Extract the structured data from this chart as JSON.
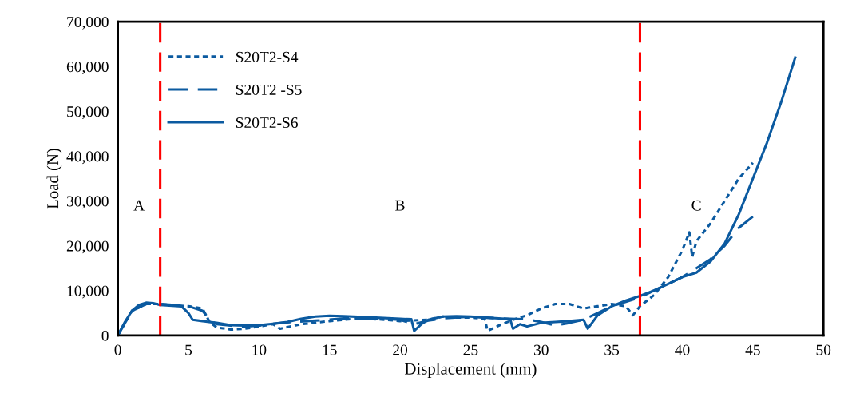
{
  "chart_data": {
    "type": "line",
    "xlabel": "Displacement (mm)",
    "ylabel": "Load (N)",
    "xlim": [
      0,
      50
    ],
    "xticks": [
      0,
      5,
      10,
      15,
      20,
      25,
      30,
      35,
      40,
      45,
      50
    ],
    "ylim": [
      0,
      70000
    ],
    "yticks": [
      {
        "value": 0,
        "label": "0"
      },
      {
        "value": 10000,
        "label": "10,000"
      },
      {
        "value": 20000,
        "label": "20,000"
      },
      {
        "value": 30000,
        "label": "30,000"
      },
      {
        "value": 40000,
        "label": "40,000"
      },
      {
        "value": 50000,
        "label": "50,000"
      },
      {
        "value": 60000,
        "label": "60,000"
      },
      {
        "value": 70000,
        "label": "70,000"
      }
    ],
    "grid": false,
    "legend": "top left",
    "marker": "none",
    "series": [
      {
        "name": "S20T2-S4",
        "color": "#0b5aa0",
        "line_style": "dotted",
        "x": [
          0,
          1,
          2,
          3,
          5,
          6,
          6.5,
          7,
          8,
          9,
          10,
          11,
          11.5,
          13,
          15,
          17,
          19,
          20,
          22,
          23,
          24,
          25,
          26,
          26.2,
          27,
          28,
          29,
          30,
          31,
          32,
          33,
          34,
          35,
          36,
          36.5,
          37,
          38,
          39,
          40,
          40.5,
          40.7,
          41,
          42,
          43,
          44,
          45
        ],
        "values": [
          0,
          5500,
          7000,
          7000,
          6500,
          6000,
          3000,
          1800,
          1300,
          1500,
          2000,
          2500,
          1500,
          2500,
          3200,
          3800,
          3500,
          3200,
          3500,
          4200,
          4000,
          4000,
          3700,
          1000,
          2200,
          3500,
          4500,
          6000,
          7000,
          7000,
          6000,
          6500,
          7000,
          6500,
          4500,
          6500,
          9000,
          13000,
          19000,
          23000,
          17500,
          21000,
          25000,
          30000,
          35000,
          38500
        ]
      },
      {
        "name": "S20T2 -S5",
        "color": "#0b5aa0",
        "line_style": "dashed",
        "x": [
          0,
          1,
          2,
          3,
          4,
          5,
          6,
          6.5,
          7,
          8,
          9,
          10,
          11,
          12,
          14,
          16,
          18,
          20,
          21,
          22,
          23,
          25,
          27,
          29,
          30,
          31,
          32,
          33,
          34,
          35,
          36,
          37,
          38,
          39,
          40,
          41,
          42,
          43,
          44,
          45
        ],
        "values": [
          0,
          5500,
          7000,
          7000,
          6800,
          6500,
          5500,
          3500,
          2500,
          2200,
          2000,
          2200,
          2600,
          2900,
          3300,
          3800,
          3800,
          3500,
          2500,
          3300,
          3800,
          4200,
          3800,
          3600,
          3000,
          2200,
          2800,
          3500,
          5000,
          6500,
          7500,
          8500,
          10000,
          11500,
          13000,
          15000,
          17000,
          20000,
          24000,
          26500
        ]
      },
      {
        "name": "S20T2-S6",
        "color": "#0b5aa0",
        "line_style": "solid",
        "x": [
          0,
          0.5,
          1,
          1.5,
          2,
          2.5,
          3,
          4.5,
          5,
          5.3,
          6,
          7,
          8,
          9,
          10,
          11,
          12,
          13,
          14,
          15,
          16,
          18,
          20,
          20.8,
          21,
          21.5,
          22,
          23,
          24,
          25,
          26,
          27,
          27.8,
          28,
          28.5,
          29,
          30,
          31,
          32,
          33,
          33.3,
          34,
          35,
          36,
          37,
          38,
          39,
          40,
          41,
          42,
          43,
          44,
          45,
          46,
          47,
          48
        ],
        "values": [
          0,
          3000,
          5500,
          6800,
          7300,
          7200,
          6800,
          6500,
          5000,
          3500,
          3200,
          2800,
          2300,
          2200,
          2300,
          2600,
          3000,
          3700,
          4200,
          4400,
          4300,
          4000,
          3700,
          3600,
          1000,
          2500,
          3500,
          4200,
          4300,
          4200,
          4000,
          3800,
          3600,
          1500,
          2500,
          2000,
          2800,
          3000,
          3200,
          3500,
          1500,
          4500,
          6500,
          7800,
          8800,
          10000,
          11500,
          13000,
          14000,
          16500,
          20500,
          27000,
          35000,
          43000,
          52000,
          62000
        ]
      }
    ],
    "ref_lines": [
      {
        "axis": "x",
        "value": 3,
        "color": "#ff0000",
        "line_style": "dashed"
      },
      {
        "axis": "x",
        "value": 37,
        "color": "#ff0000",
        "line_style": "dashed"
      }
    ],
    "annotations": [
      "A",
      "B",
      "C"
    ]
  }
}
